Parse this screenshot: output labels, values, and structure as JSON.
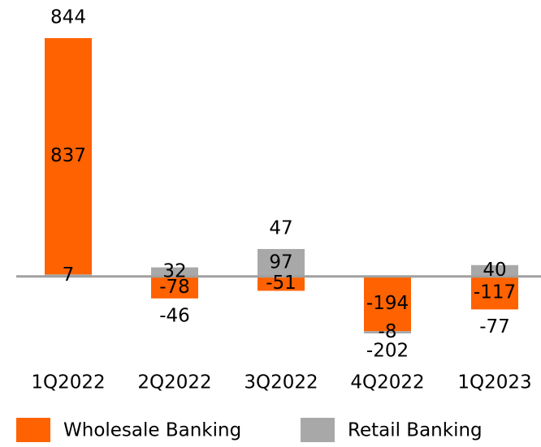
{
  "chart_data": {
    "type": "stacked-bar",
    "categories": [
      "1Q2022",
      "2Q2022",
      "3Q2022",
      "4Q2022",
      "1Q2023"
    ],
    "series": [
      {
        "name": "Wholesale Banking",
        "color": "#ff6200",
        "values": [
          837,
          -78,
          -51,
          -194,
          -117
        ]
      },
      {
        "name": "Retail Banking",
        "color": "#a8a8a8",
        "values": [
          7,
          32,
          97,
          -8,
          40
        ]
      }
    ],
    "totals": [
      844,
      -46,
      47,
      -202,
      -77
    ],
    "legend": "bottom"
  }
}
